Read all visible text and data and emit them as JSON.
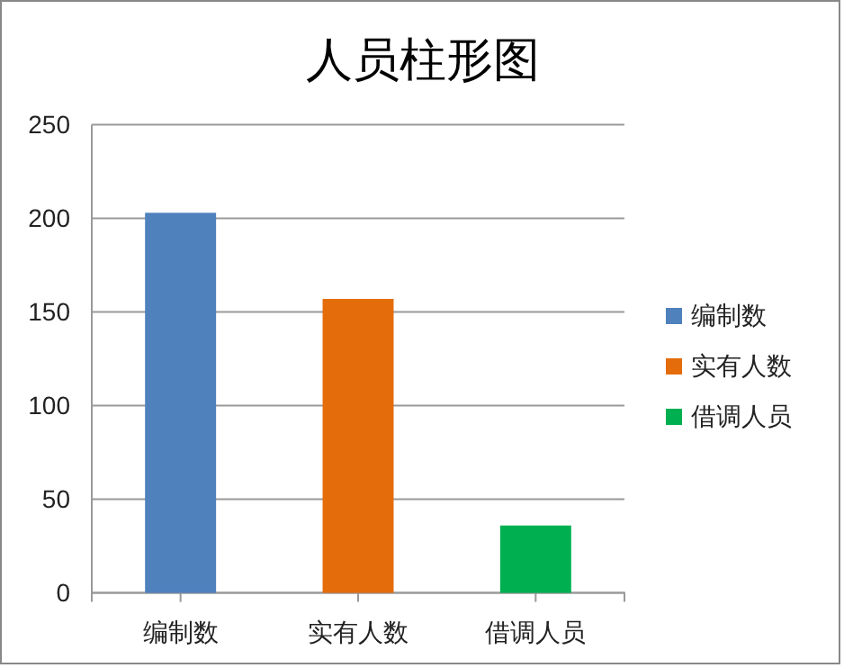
{
  "chart_data": {
    "type": "bar",
    "title": "人员柱形图",
    "categories": [
      "编制数",
      "实有人数",
      "借调人员"
    ],
    "series": [
      {
        "name": "编制数",
        "color": "#4f81bd",
        "values": [
          203,
          null,
          null
        ]
      },
      {
        "name": "实有人数",
        "color": "#e46c0a",
        "values": [
          null,
          157,
          null
        ]
      },
      {
        "name": "借调人员",
        "color": "#00b050",
        "values": [
          null,
          null,
          36
        ]
      }
    ],
    "ylim": [
      0,
      250
    ],
    "yticks": [
      0,
      50,
      100,
      150,
      200,
      250
    ],
    "grid": "y",
    "legend": "right"
  }
}
